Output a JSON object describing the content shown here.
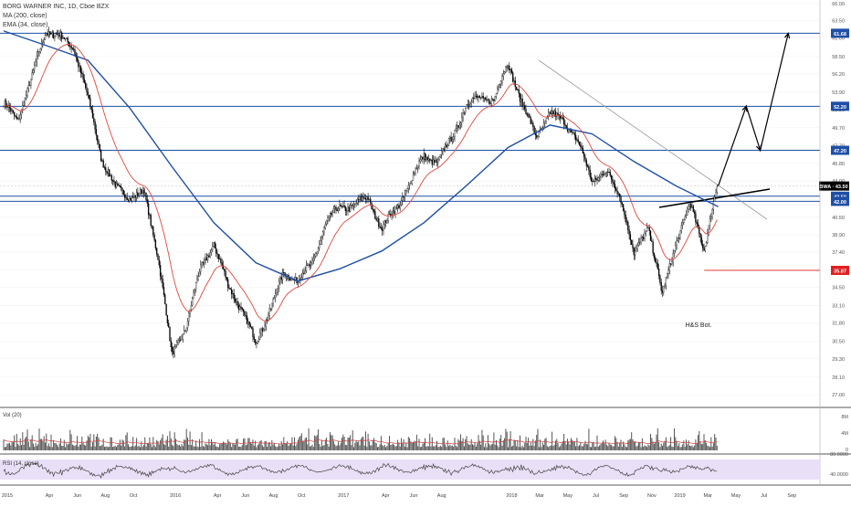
{
  "header": {
    "title": "BORG WARNER INC, 1D, Cboe BZX",
    "ma_label": "MA (200, close)",
    "ema_label": "EMA (34, close)"
  },
  "panes": {
    "volume_label": "Vol (20)",
    "rsi_label": "RSI (14, close)",
    "volume_ticks": [
      "8M",
      "4M",
      "0"
    ],
    "rsi_ticks": [
      "80.0000",
      "40.0000"
    ]
  },
  "annotation": {
    "pattern_label": "H&S Bot."
  },
  "colors": {
    "candle": "#000000",
    "ma200": "#1f4fa6",
    "ema34": "#e0463c",
    "hline": "#1f4fa6",
    "support": "#e02020",
    "volume": "#555555",
    "rsi": "#444444",
    "rsi_band": "#e9e0f7",
    "forecast": "#000000"
  },
  "chart_data": {
    "type": "candlestick",
    "symbol": "BWA",
    "last_price": 43.5,
    "price_tag": "BWA",
    "ylim": [
      27,
      66
    ],
    "y_ticks": [
      27.0,
      28.1,
      29.3,
      30.5,
      31.8,
      33.1,
      34.5,
      35.9,
      37.4,
      38.9,
      40.5,
      42.2,
      44.0,
      45.8,
      47.7,
      49.7,
      51.8,
      53.9,
      56.2,
      58.5,
      61.0,
      63.5,
      66.0
    ],
    "x_ticks": [
      "2015",
      "Apr",
      "Jun",
      "Aug",
      "Oct",
      "2016",
      "Apr",
      "Jun",
      "Aug",
      "Oct",
      "2017",
      "Apr",
      "Jun",
      "Aug",
      "2018",
      "Mar",
      "May",
      "Jul",
      "Sep",
      "Nov",
      "2019",
      "Mar",
      "May",
      "Jul",
      "Sep"
    ],
    "horizontal_levels": [
      {
        "value": 61.68,
        "label": "61.68",
        "kind": "resistance"
      },
      {
        "value": 52.2,
        "label": "52.20",
        "kind": "resistance"
      },
      {
        "value": 47.2,
        "label": "47.20",
        "kind": "resistance"
      },
      {
        "value": 42.5,
        "label": "42.50",
        "kind": "neckline"
      },
      {
        "value": 42.0,
        "label": "42.00",
        "kind": "support"
      },
      {
        "value": 35.87,
        "label": "35.87",
        "kind": "support"
      }
    ],
    "close_path": [
      [
        "2015-01",
        52.0
      ],
      [
        "2015-02",
        50.5
      ],
      [
        "2015-03",
        55.5
      ],
      [
        "2015-04",
        62.5
      ],
      [
        "2015-05",
        61.5
      ],
      [
        "2015-06",
        60.0
      ],
      [
        "2015-07",
        53.0
      ],
      [
        "2015-08",
        46.0
      ],
      [
        "2015-09",
        43.0
      ],
      [
        "2015-10",
        42.5
      ],
      [
        "2015-11",
        43.0
      ],
      [
        "2015-12",
        37.5
      ],
      [
        "2016-01",
        29.5
      ],
      [
        "2016-02",
        31.5
      ],
      [
        "2016-03",
        35.5
      ],
      [
        "2016-04",
        38.0
      ],
      [
        "2016-05",
        34.5
      ],
      [
        "2016-06",
        33.0
      ],
      [
        "2016-07",
        30.5
      ],
      [
        "2016-08",
        33.0
      ],
      [
        "2016-09",
        35.5
      ],
      [
        "2016-10",
        35.0
      ],
      [
        "2016-11",
        36.0
      ],
      [
        "2016-12",
        40.0
      ],
      [
        "2017-01",
        41.5
      ],
      [
        "2017-02",
        42.0
      ],
      [
        "2017-03",
        42.5
      ],
      [
        "2017-04",
        39.5
      ],
      [
        "2017-05",
        41.0
      ],
      [
        "2017-06",
        43.5
      ],
      [
        "2017-07",
        46.5
      ],
      [
        "2017-08",
        46.0
      ],
      [
        "2017-09",
        49.0
      ],
      [
        "2017-10",
        52.5
      ],
      [
        "2017-11",
        53.5
      ],
      [
        "2017-12",
        52.5
      ],
      [
        "2018-01",
        57.5
      ],
      [
        "2018-02",
        52.0
      ],
      [
        "2018-03",
        49.0
      ],
      [
        "2018-04",
        51.5
      ],
      [
        "2018-05",
        51.0
      ],
      [
        "2018-06",
        48.0
      ],
      [
        "2018-07",
        44.0
      ],
      [
        "2018-08",
        44.5
      ],
      [
        "2018-09",
        42.5
      ],
      [
        "2018-10",
        37.0
      ],
      [
        "2018-11",
        40.0
      ],
      [
        "2018-12",
        34.0
      ],
      [
        "2019-01",
        38.5
      ],
      [
        "2019-02",
        41.5
      ],
      [
        "2019-03",
        37.5
      ],
      [
        "2019-04",
        43.5
      ]
    ],
    "ma200_path": [
      [
        "2015-01",
        62.0
      ],
      [
        "2015-04",
        60.0
      ],
      [
        "2015-07",
        58.0
      ],
      [
        "2015-10",
        52.0
      ],
      [
        "2016-01",
        45.5
      ],
      [
        "2016-04",
        40.0
      ],
      [
        "2016-07",
        36.5
      ],
      [
        "2016-10",
        35.0
      ],
      [
        "2017-01",
        36.0
      ],
      [
        "2017-04",
        37.5
      ],
      [
        "2017-07",
        40.0
      ],
      [
        "2017-10",
        43.5
      ],
      [
        "2018-01",
        47.5
      ],
      [
        "2018-04",
        50.0
      ],
      [
        "2018-07",
        49.0
      ],
      [
        "2018-10",
        46.0
      ],
      [
        "2019-01",
        43.5
      ],
      [
        "2019-04",
        41.5
      ]
    ],
    "forecast_path": [
      [
        "2019-04",
        43.5
      ],
      [
        "2019-06",
        52.2
      ],
      [
        "2019-07",
        47.2
      ],
      [
        "2019-09",
        61.68
      ]
    ]
  }
}
